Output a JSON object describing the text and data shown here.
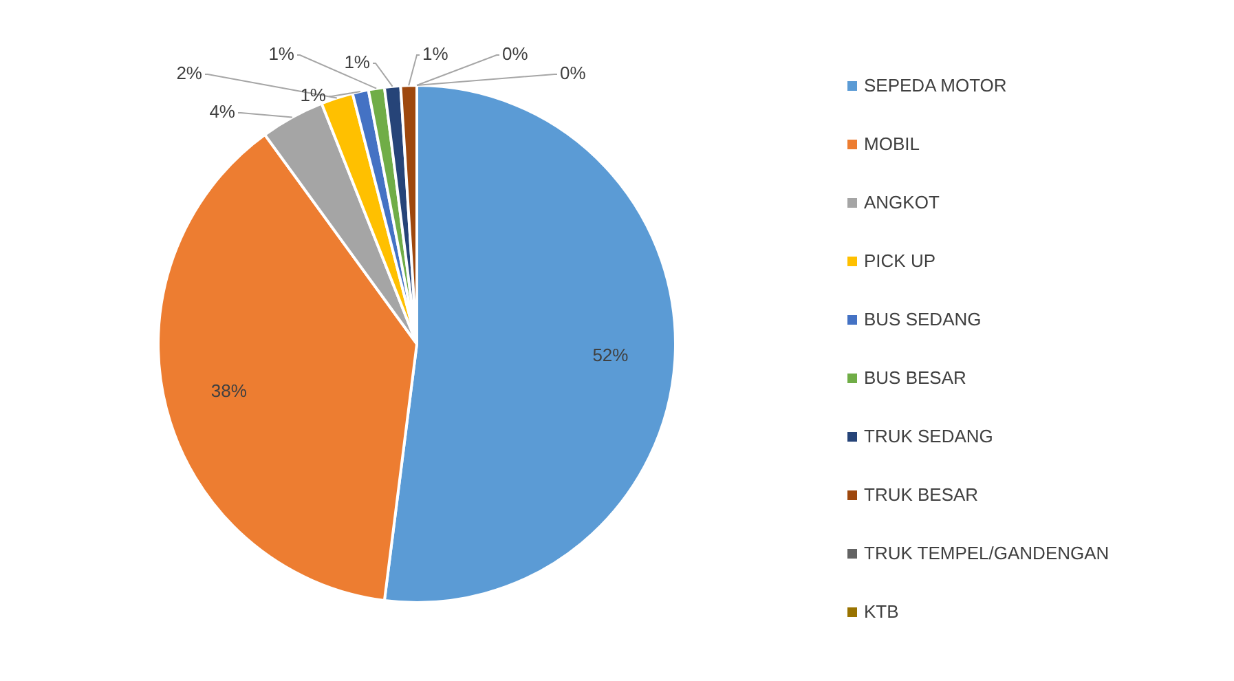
{
  "chart_data": {
    "type": "pie",
    "categories": [
      "SEPEDA MOTOR",
      "MOBIL",
      "ANGKOT",
      "PICK UP",
      "BUS SEDANG",
      "BUS BESAR",
      "TRUK SEDANG",
      "TRUK BESAR",
      "TRUK TEMPEL/GANDENGAN",
      "KTB"
    ],
    "values": [
      52,
      38,
      4,
      2,
      1,
      1,
      1,
      1,
      0,
      0
    ],
    "colors": [
      "#5b9bd5",
      "#ed7d31",
      "#a5a5a5",
      "#ffc000",
      "#4472c4",
      "#70ad47",
      "#264478",
      "#9e480e",
      "#636363",
      "#997300"
    ],
    "value_labels": [
      "52%",
      "38%",
      "4%",
      "2%",
      "1%",
      "1%",
      "1%",
      "1%",
      "0%",
      "0%"
    ],
    "legend": "right"
  }
}
